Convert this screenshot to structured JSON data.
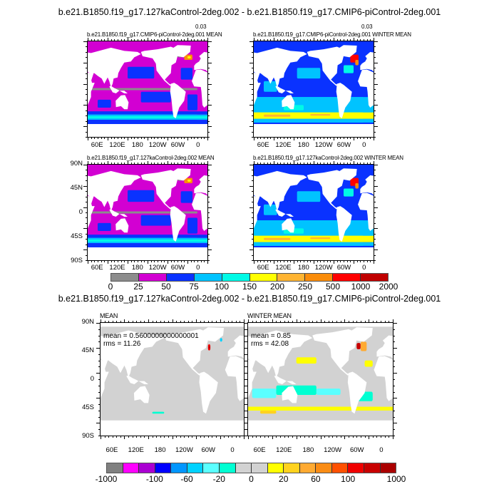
{
  "figure": {
    "title": "b.e21.B1850.f19_g17.127kaControl-2deg.002 - b.e21.B1850.f19_g17.CMIP6-piControl-2deg.001",
    "panels": [
      {
        "subtitle": "b.e21.B1850.f19_g17.CMIP6-piControl-2deg.001 MEAN",
        "overlap_value": "0.03",
        "kind": "mean"
      },
      {
        "subtitle": "b.e21.B1850.f19_g17.CMIP6-piControl-2deg.001 WINTER MEAN",
        "overlap_value": "0.03",
        "kind": "winter"
      },
      {
        "subtitle": "b.e21.B1850.f19_g17.127kaControl-2deg.002 MEAN",
        "kind": "mean"
      },
      {
        "subtitle": "b.e21.B1850.f19_g17.127kaControl-2deg.002 WINTER MEAN",
        "kind": "winter"
      }
    ],
    "lat_labels": [
      "90N",
      "45N",
      "0",
      "45S",
      "90S"
    ],
    "lon_labels": [
      "60E",
      "120E",
      "180",
      "120W",
      "60W",
      "0"
    ],
    "colorbar1": {
      "labels": [
        "0",
        "25",
        "50",
        "75",
        "100",
        "150",
        "200",
        "250",
        "500",
        "1000",
        "2000"
      ],
      "colors": [
        "#8c8c8c",
        "#d200d2",
        "#0a32ff",
        "#00c3ff",
        "#00fae6",
        "#ffff00",
        "#ffb432",
        "#fa8c0a",
        "#ff0000",
        "#c00000"
      ]
    },
    "diff_title": "b.e21.B1850.f19_g17.127kaControl-2deg.002 - b.e21.B1850.f19_g17.CMIP6-piControl-2deg.001",
    "diff_panels": [
      {
        "label": "MEAN",
        "mean_text": "mean = 0.5600000000000001",
        "rms_text": "rms = 11.26",
        "kind": "dmean"
      },
      {
        "label": "WINTER MEAN",
        "mean_text": "mean = 0.85",
        "rms_text": "rms = 42.08",
        "kind": "dwinter"
      }
    ],
    "colorbar2": {
      "labels": [
        "-1000",
        "-100",
        "-60",
        "-20",
        "0",
        "20",
        "60",
        "100",
        "1000"
      ],
      "label_boundaries": [
        0,
        3,
        5,
        7,
        9,
        11,
        13,
        15,
        18
      ],
      "colors": [
        "#808080",
        "#ff00ff",
        "#aa00d2",
        "#0000ff",
        "#0096ff",
        "#00d2ff",
        "#5affff",
        "#00ffd2",
        "#d2d2d2",
        "#d2d2d2",
        "#ffff00",
        "#ffd21e",
        "#ffaa32",
        "#fa8c14",
        "#ff5000",
        "#f00000",
        "#c80000",
        "#aa0000"
      ]
    }
  }
}
